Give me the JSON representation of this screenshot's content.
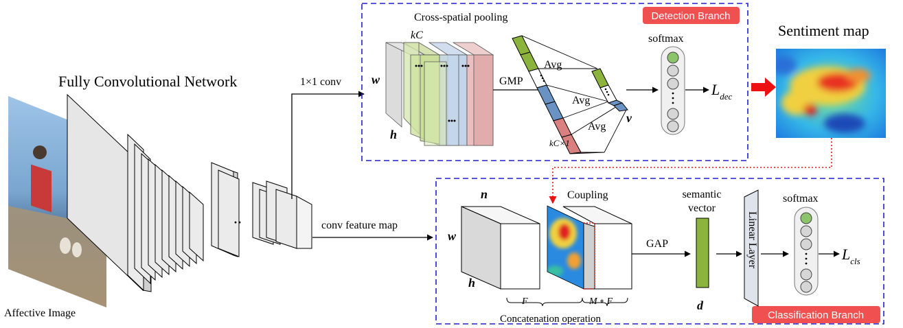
{
  "fcn_title": "Fully Convolutional Network",
  "input_label": "Affective Image",
  "conv1x1_label": "1×1 conv",
  "conv_feature_map_label": "conv feature map",
  "fcn_dots": "··",
  "detection": {
    "tag": "Detection Branch",
    "pool_title": "Cross-spatial pooling",
    "kc": "kC",
    "w": "w",
    "h": "h",
    "gmp": "GMP",
    "avg": [
      "Avg",
      "Avg",
      "Avg"
    ],
    "v": "v",
    "kc1": "kC×1",
    "softmax": "softmax",
    "loss_main": "L",
    "loss_sub": "dec"
  },
  "sentiment_map_title": "Sentiment map",
  "classification": {
    "tag": "Classification Branch",
    "n": "n",
    "w": "w",
    "h": "h",
    "coupling": "Coupling",
    "f_label": "F",
    "mf_label": "M ∘ F",
    "concat_label": "Concatenation operation",
    "gap": "GAP",
    "semantic_vector": [
      "semantic",
      "vector"
    ],
    "d": "d",
    "linear_layer": "Linear Layer",
    "softmax": "softmax",
    "loss_main": "L",
    "loss_sub": "cls"
  },
  "colors": {
    "branch_border": "#1f1fd0",
    "tag_bg": "#f05050",
    "green": "#8cb43c",
    "blue": "#6a93c4",
    "red": "#d98080",
    "arrow_red": "#ee1111",
    "node_green": "#8cc46c",
    "node_gray": "#d6d6d6"
  }
}
